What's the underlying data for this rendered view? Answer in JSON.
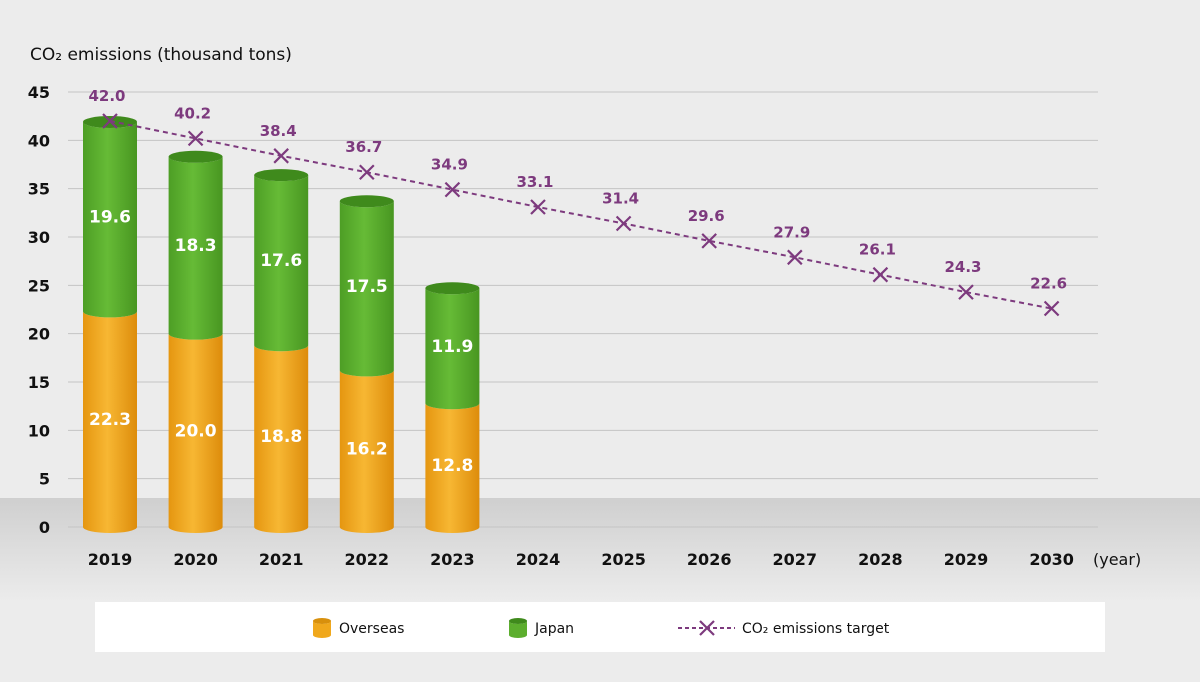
{
  "chart_data": {
    "type": "bar",
    "ylabel": "CO₂ emissions (thousand tons)",
    "xlabel": "(year)",
    "ylim": [
      0,
      45
    ],
    "yticks": [
      0,
      5,
      10,
      15,
      20,
      25,
      30,
      35,
      40,
      45
    ],
    "grid": true,
    "legend_position": "bottom",
    "categories": [
      "2019",
      "2020",
      "2021",
      "2022",
      "2023",
      "2024",
      "2025",
      "2026",
      "2027",
      "2028",
      "2029",
      "2030"
    ],
    "series": [
      {
        "name": "Overseas",
        "type": "stacked-bar",
        "color": "#f0a81c",
        "values": [
          22.3,
          20.0,
          18.8,
          16.2,
          12.8,
          null,
          null,
          null,
          null,
          null,
          null,
          null
        ],
        "labels": [
          "22.3",
          "20.0",
          "18.8",
          "16.2",
          "12.8"
        ]
      },
      {
        "name": "Japan",
        "type": "stacked-bar",
        "color": "#5cae2e",
        "values": [
          19.6,
          18.3,
          17.6,
          17.5,
          11.9,
          null,
          null,
          null,
          null,
          null,
          null,
          null
        ],
        "labels": [
          "19.6",
          "18.3",
          "17.6",
          "17.5",
          "11.9"
        ]
      },
      {
        "name": "CO₂ emissions target",
        "type": "line",
        "color": "#7d3a7e",
        "marker": "x",
        "dashed": true,
        "values": [
          42.0,
          40.2,
          38.4,
          36.7,
          34.9,
          33.1,
          31.4,
          29.6,
          27.9,
          26.1,
          24.3,
          22.6
        ],
        "labels": [
          "42.0",
          "40.2",
          "38.4",
          "36.7",
          "34.9",
          "33.1",
          "31.4",
          "29.6",
          "27.9",
          "26.1",
          "24.3",
          "22.6"
        ]
      }
    ]
  }
}
